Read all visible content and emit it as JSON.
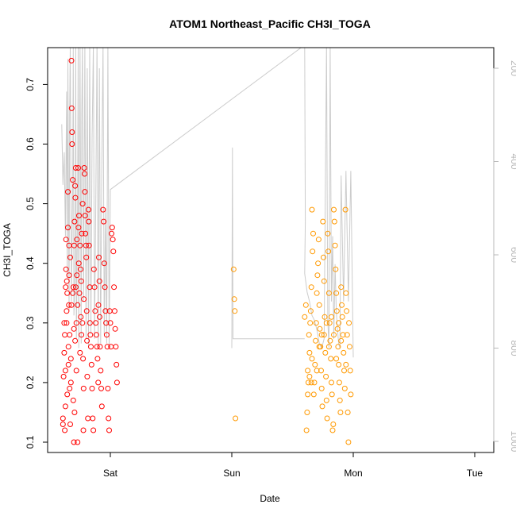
{
  "chart_data": {
    "type": "scatter",
    "title": "ATOM1 Northeast_Pacific CH3I_TOGA",
    "xlabel": "Date",
    "ylabel": "CH3I_TOGA",
    "x_ticks": [
      "Sat",
      "Sun",
      "Mon",
      "Tue"
    ],
    "y_ticks": [
      0.1,
      0.2,
      0.3,
      0.4,
      0.5,
      0.6,
      0.7
    ],
    "ylim": [
      0.1,
      0.76
    ],
    "right_axis": {
      "ticks": [
        200,
        400,
        600,
        800,
        1000
      ],
      "range": [
        1030,
        150
      ],
      "color": "#b8b8b8"
    },
    "grid": false,
    "legend": "none",
    "series": [
      {
        "color": "#ff0000",
        "points": [
          [
            -0.39,
            0.13
          ],
          [
            -0.39,
            0.14
          ],
          [
            -0.385,
            0.21
          ],
          [
            -0.38,
            0.25
          ],
          [
            -0.38,
            0.3
          ],
          [
            -0.375,
            0.28
          ],
          [
            -0.375,
            0.12
          ],
          [
            -0.37,
            0.16
          ],
          [
            -0.37,
            0.22
          ],
          [
            -0.368,
            0.36
          ],
          [
            -0.365,
            0.39
          ],
          [
            -0.365,
            0.44
          ],
          [
            -0.36,
            0.32
          ],
          [
            -0.36,
            0.3
          ],
          [
            -0.358,
            0.37
          ],
          [
            -0.355,
            0.18
          ],
          [
            -0.355,
            0.35
          ],
          [
            -0.35,
            0.46
          ],
          [
            -0.35,
            0.52
          ],
          [
            -0.345,
            0.23
          ],
          [
            -0.345,
            0.26
          ],
          [
            -0.342,
            0.33
          ],
          [
            -0.34,
            0.38
          ],
          [
            -0.34,
            0.43
          ],
          [
            -0.335,
            0.19
          ],
          [
            -0.335,
            0.28
          ],
          [
            -0.33,
            0.13
          ],
          [
            -0.33,
            0.41
          ],
          [
            -0.325,
            0.2
          ],
          [
            -0.325,
            0.24
          ],
          [
            -0.32,
            0.33
          ],
          [
            -0.32,
            0.74
          ],
          [
            -0.318,
            0.66
          ],
          [
            -0.315,
            0.6
          ],
          [
            -0.315,
            0.62
          ],
          [
            -0.31,
            0.35
          ],
          [
            -0.31,
            0.54
          ],
          [
            -0.305,
            0.17
          ],
          [
            -0.305,
            0.36
          ],
          [
            -0.3,
            0.1
          ],
          [
            -0.3,
            0.29
          ],
          [
            -0.298,
            0.43
          ],
          [
            -0.295,
            0.15
          ],
          [
            -0.295,
            0.47
          ],
          [
            -0.29,
            0.27
          ],
          [
            -0.29,
            0.53
          ],
          [
            -0.288,
            0.51
          ],
          [
            -0.285,
            0.36
          ],
          [
            -0.285,
            0.56
          ],
          [
            -0.28,
            0.22
          ],
          [
            -0.28,
            0.3
          ],
          [
            -0.275,
            0.44
          ],
          [
            -0.275,
            0.38
          ],
          [
            -0.27,
            0.1
          ],
          [
            -0.27,
            0.33
          ],
          [
            -0.265,
            0.56
          ],
          [
            -0.262,
            0.46
          ],
          [
            -0.26,
            0.4
          ],
          [
            -0.258,
            0.48
          ],
          [
            -0.255,
            0.35
          ],
          [
            -0.25,
            0.25
          ],
          [
            -0.25,
            0.43
          ],
          [
            -0.245,
            0.39
          ],
          [
            -0.243,
            0.31
          ],
          [
            -0.24,
            0.37
          ],
          [
            -0.238,
            0.28
          ],
          [
            -0.235,
            0.45
          ],
          [
            -0.23,
            0.3
          ],
          [
            -0.228,
            0.5
          ],
          [
            -0.225,
            0.24
          ],
          [
            -0.222,
            0.12
          ],
          [
            -0.22,
            0.19
          ],
          [
            -0.218,
            0.34
          ],
          [
            -0.215,
            0.56
          ],
          [
            -0.212,
            0.55
          ],
          [
            -0.21,
            0.52
          ],
          [
            -0.208,
            0.48
          ],
          [
            -0.205,
            0.45
          ],
          [
            -0.2,
            0.43
          ],
          [
            -0.198,
            0.41
          ],
          [
            -0.195,
            0.32
          ],
          [
            -0.192,
            0.27
          ],
          [
            -0.19,
            0.21
          ],
          [
            -0.185,
            0.14
          ],
          [
            -0.18,
            0.49
          ],
          [
            -0.178,
            0.47
          ],
          [
            -0.175,
            0.43
          ],
          [
            -0.17,
            0.36
          ],
          [
            -0.168,
            0.3
          ],
          [
            -0.165,
            0.28
          ],
          [
            -0.16,
            0.26
          ],
          [
            -0.155,
            0.23
          ],
          [
            -0.15,
            0.19
          ],
          [
            -0.145,
            0.14
          ],
          [
            -0.14,
            0.12
          ],
          [
            -0.135,
            0.39
          ],
          [
            -0.13,
            0.36
          ],
          [
            -0.125,
            0.32
          ],
          [
            -0.12,
            0.3
          ],
          [
            -0.115,
            0.28
          ],
          [
            -0.11,
            0.26
          ],
          [
            -0.105,
            0.24
          ],
          [
            -0.1,
            0.2
          ],
          [
            -0.098,
            0.33
          ],
          [
            -0.095,
            0.41
          ],
          [
            -0.09,
            0.37
          ],
          [
            -0.088,
            0.31
          ],
          [
            -0.085,
            0.26
          ],
          [
            -0.08,
            0.22
          ],
          [
            -0.075,
            0.19
          ],
          [
            -0.07,
            0.16
          ],
          [
            -0.06,
            0.49
          ],
          [
            -0.055,
            0.47
          ],
          [
            -0.05,
            0.4
          ],
          [
            -0.045,
            0.36
          ],
          [
            -0.04,
            0.32
          ],
          [
            -0.035,
            0.3
          ],
          [
            -0.03,
            0.28
          ],
          [
            -0.025,
            0.26
          ],
          [
            -0.02,
            0.19
          ],
          [
            -0.015,
            0.14
          ],
          [
            -0.01,
            0.12
          ],
          [
            -0.005,
            0.32
          ],
          [
            0,
            0.3
          ],
          [
            0.005,
            0.26
          ],
          [
            0.01,
            0.45
          ],
          [
            0.015,
            0.46
          ],
          [
            0.02,
            0.44
          ],
          [
            0.025,
            0.42
          ],
          [
            0.03,
            0.36
          ],
          [
            0.035,
            0.32
          ],
          [
            0.04,
            0.29
          ],
          [
            0.045,
            0.26
          ],
          [
            0.05,
            0.23
          ],
          [
            0.055,
            0.2
          ]
        ]
      },
      {
        "color": "#ff9900",
        "points": [
          [
            1.015,
            0.39
          ],
          [
            1.02,
            0.34
          ],
          [
            1.025,
            0.32
          ],
          [
            1.03,
            0.14
          ],
          [
            1.6,
            0.31
          ],
          [
            1.61,
            0.33
          ],
          [
            1.615,
            0.12
          ],
          [
            1.62,
            0.15
          ],
          [
            1.625,
            0.22
          ],
          [
            1.63,
            0.2
          ],
          [
            1.635,
            0.28
          ],
          [
            1.64,
            0.25
          ],
          [
            1.645,
            0.3
          ],
          [
            1.65,
            0.32
          ],
          [
            1.655,
            0.36
          ],
          [
            1.66,
            0.49
          ],
          [
            1.665,
            0.42
          ],
          [
            1.67,
            0.45
          ],
          [
            1.675,
            0.18
          ],
          [
            1.68,
            0.2
          ],
          [
            1.685,
            0.23
          ],
          [
            1.69,
            0.27
          ],
          [
            1.695,
            0.3
          ],
          [
            1.7,
            0.35
          ],
          [
            1.705,
            0.38
          ],
          [
            1.71,
            0.4
          ],
          [
            1.715,
            0.44
          ],
          [
            1.72,
            0.33
          ],
          [
            1.725,
            0.29
          ],
          [
            1.73,
            0.26
          ],
          [
            1.735,
            0.22
          ],
          [
            1.74,
            0.19
          ],
          [
            1.745,
            0.16
          ],
          [
            1.75,
            0.47
          ],
          [
            1.755,
            0.41
          ],
          [
            1.76,
            0.37
          ],
          [
            1.765,
            0.31
          ],
          [
            1.77,
            0.25
          ],
          [
            1.775,
            0.21
          ],
          [
            1.78,
            0.17
          ],
          [
            1.785,
            0.14
          ],
          [
            1.79,
            0.45
          ],
          [
            1.795,
            0.42
          ],
          [
            1.8,
            0.35
          ],
          [
            1.805,
            0.3
          ],
          [
            1.81,
            0.27
          ],
          [
            1.815,
            0.24
          ],
          [
            1.82,
            0.2
          ],
          [
            1.825,
            0.18
          ],
          [
            1.83,
            0.12
          ],
          [
            1.835,
            0.13
          ],
          [
            1.84,
            0.49
          ],
          [
            1.845,
            0.47
          ],
          [
            1.85,
            0.43
          ],
          [
            1.855,
            0.39
          ],
          [
            1.86,
            0.35
          ],
          [
            1.865,
            0.32
          ],
          [
            1.87,
            0.29
          ],
          [
            1.875,
            0.26
          ],
          [
            1.88,
            0.23
          ],
          [
            1.885,
            0.2
          ],
          [
            1.89,
            0.17
          ],
          [
            1.895,
            0.15
          ],
          [
            1.9,
            0.36
          ],
          [
            1.905,
            0.33
          ],
          [
            1.91,
            0.31
          ],
          [
            1.915,
            0.28
          ],
          [
            1.92,
            0.25
          ],
          [
            1.925,
            0.22
          ],
          [
            1.93,
            0.19
          ],
          [
            1.935,
            0.49
          ],
          [
            1.94,
            0.35
          ],
          [
            1.945,
            0.32
          ],
          [
            1.95,
            0.28
          ],
          [
            1.955,
            0.15
          ],
          [
            1.96,
            0.1
          ],
          [
            1.965,
            0.3
          ],
          [
            1.97,
            0.26
          ],
          [
            1.975,
            0.22
          ],
          [
            1.98,
            0.18
          ],
          [
            1.64,
            0.21
          ],
          [
            1.7,
            0.22
          ],
          [
            1.74,
            0.28
          ],
          [
            1.78,
            0.3
          ],
          [
            1.82,
            0.31
          ],
          [
            1.86,
            0.24
          ],
          [
            1.9,
            0.27
          ],
          [
            1.94,
            0.23
          ],
          [
            1.66,
            0.24
          ],
          [
            1.72,
            0.26
          ],
          [
            1.8,
            0.26
          ],
          [
            1.88,
            0.3
          ],
          [
            1.625,
            0.18
          ],
          [
            1.655,
            0.2
          ],
          [
            1.76,
            0.28
          ],
          [
            1.84,
            0.28
          ]
        ]
      }
    ],
    "profile_line": {
      "color": "#cccccc",
      "points": [
        [
          -0.4,
          320
        ],
        [
          -0.39,
          450
        ],
        [
          -0.38,
          380
        ],
        [
          -0.37,
          560
        ],
        [
          -0.36,
          250
        ],
        [
          -0.355,
          650
        ],
        [
          -0.35,
          180
        ],
        [
          -0.34,
          720
        ],
        [
          -0.335,
          300
        ],
        [
          -0.33,
          150
        ],
        [
          -0.32,
          700
        ],
        [
          -0.31,
          450
        ],
        [
          -0.305,
          150
        ],
        [
          -0.3,
          730
        ],
        [
          -0.29,
          640
        ],
        [
          -0.285,
          150
        ],
        [
          -0.28,
          780
        ],
        [
          -0.27,
          500
        ],
        [
          -0.265,
          150
        ],
        [
          -0.26,
          800
        ],
        [
          -0.255,
          430
        ],
        [
          -0.25,
          150
        ],
        [
          -0.24,
          790
        ],
        [
          -0.235,
          300
        ],
        [
          -0.23,
          150
        ],
        [
          -0.22,
          700
        ],
        [
          -0.21,
          150
        ],
        [
          -0.2,
          780
        ],
        [
          -0.19,
          200
        ],
        [
          -0.18,
          800
        ],
        [
          -0.17,
          150
        ],
        [
          -0.16,
          770
        ],
        [
          -0.15,
          350
        ],
        [
          -0.14,
          150
        ],
        [
          -0.13,
          780
        ],
        [
          -0.12,
          500
        ],
        [
          -0.11,
          150
        ],
        [
          -0.1,
          800
        ],
        [
          -0.09,
          200
        ],
        [
          -0.08,
          790
        ],
        [
          -0.07,
          400
        ],
        [
          -0.06,
          150
        ],
        [
          -0.05,
          770
        ],
        [
          -0.04,
          500
        ],
        [
          -0.03,
          790
        ],
        [
          -0.02,
          150
        ],
        [
          -0.01,
          800
        ],
        [
          0,
          460
        ],
        [
          1.6,
          150
        ],
        [
          1.605,
          530
        ],
        [
          1.6,
          640
        ],
        [
          1.62,
          680
        ],
        [
          1.64,
          700
        ],
        [
          1.66,
          730
        ],
        [
          1.68,
          740
        ],
        [
          1.7,
          760
        ],
        [
          1.72,
          790
        ],
        [
          1.74,
          800
        ],
        [
          1.76,
          780
        ],
        [
          1.78,
          150
        ],
        [
          1.79,
          740
        ],
        [
          1.8,
          800
        ],
        [
          1.81,
          150
        ],
        [
          1.82,
          700
        ],
        [
          1.83,
          560
        ],
        [
          1.84,
          780
        ],
        [
          1.85,
          620
        ],
        [
          1.86,
          720
        ],
        [
          1.87,
          760
        ],
        [
          1.88,
          790
        ],
        [
          1.89,
          800
        ],
        [
          1.9,
          430
        ],
        [
          1.92,
          700
        ],
        [
          1.94,
          420
        ],
        [
          1.96,
          700
        ],
        [
          1.98,
          420
        ],
        [
          2.0,
          820
        ]
      ],
      "segment_monday": [
        [
          1.0,
          800
        ],
        [
          1.005,
          370
        ],
        [
          1.01,
          780
        ],
        [
          1.6,
          780
        ]
      ]
    }
  }
}
